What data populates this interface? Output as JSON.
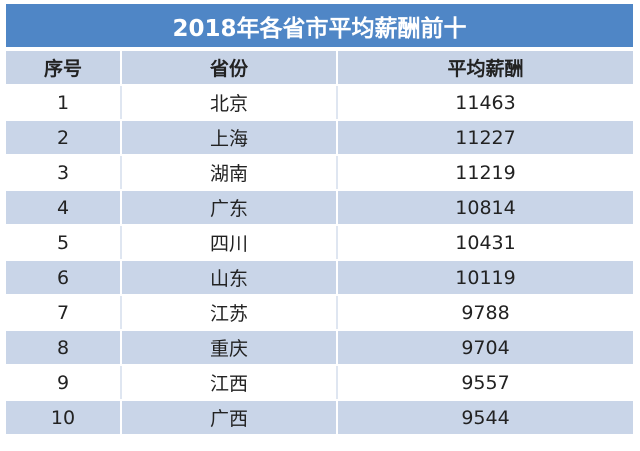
{
  "title": "2018年各省市平均薪酬前十",
  "headers": {
    "rank": "序号",
    "province": "省份",
    "salary": "平均薪酬"
  },
  "rows": [
    {
      "rank": "1",
      "province": "北京",
      "salary": "11463"
    },
    {
      "rank": "2",
      "province": "上海",
      "salary": "11227"
    },
    {
      "rank": "3",
      "province": "湖南",
      "salary": "11219"
    },
    {
      "rank": "4",
      "province": "广东",
      "salary": "10814"
    },
    {
      "rank": "5",
      "province": "四川",
      "salary": "10431"
    },
    {
      "rank": "6",
      "province": "山东",
      "salary": "10119"
    },
    {
      "rank": "7",
      "province": "江苏",
      "salary": "9788"
    },
    {
      "rank": "8",
      "province": "重庆",
      "salary": "9704"
    },
    {
      "rank": "9",
      "province": "江西",
      "salary": "9557"
    },
    {
      "rank": "10",
      "province": "广西",
      "salary": "9544"
    }
  ],
  "colors": {
    "title_bg": "#4f86c6",
    "header_bg": "#c7d3e6",
    "band_bg": "#c9d5e8",
    "row_bg": "#ffffff"
  }
}
